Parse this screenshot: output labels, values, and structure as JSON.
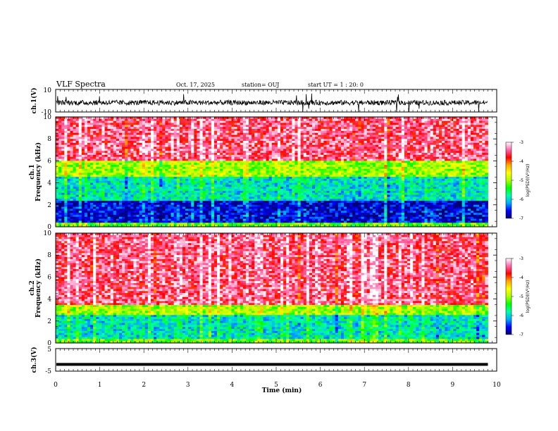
{
  "header": {
    "title": "VLF Spectra",
    "date": "Oct. 17, 2025",
    "station": "station= OUJ",
    "start": "start  UT =   1 : 20: 0"
  },
  "chart_data": [
    {
      "type": "line",
      "name": "ch1-waveform",
      "ylabel": "ch.1(V)",
      "ylim": [
        -10,
        10
      ],
      "y_ticks": [
        "10",
        "-10"
      ],
      "baseline": -2,
      "noise_band": [
        -4,
        0.5
      ],
      "spikes_max": 9,
      "xlim": [
        0,
        9.8
      ]
    },
    {
      "type": "heatmap",
      "name": "ch1-spectrogram",
      "ylabel_top": "ch.1",
      "ylabel": "Frequency  (kHz)",
      "ylim": [
        0,
        10
      ],
      "y_ticks": [
        "0",
        "2",
        "4",
        "6",
        "8",
        "10"
      ],
      "xlim": [
        0,
        9.8
      ],
      "approx_profile": [
        {
          "freq": [
            0,
            0.4
          ],
          "log_psd": -5.2
        },
        {
          "freq": [
            0.4,
            2.4
          ],
          "log_psd": -6.7
        },
        {
          "freq": [
            2.4,
            4.5
          ],
          "log_psd": -5.9
        },
        {
          "freq": [
            4.5,
            6.0
          ],
          "log_psd": -5.0
        },
        {
          "freq": [
            6.0,
            10.0
          ],
          "log_psd": -3.5
        }
      ]
    },
    {
      "type": "heatmap",
      "name": "ch2-spectrogram",
      "ylabel_top": "ch.2",
      "ylabel": "Frequency  (kHz)",
      "ylim": [
        0,
        10
      ],
      "y_ticks": [
        "0",
        "2",
        "4",
        "6",
        "8",
        "10"
      ],
      "xlim": [
        0,
        9.8
      ],
      "approx_profile": [
        {
          "freq": [
            0,
            0.4
          ],
          "log_psd": -5.2
        },
        {
          "freq": [
            0.4,
            2.6
          ],
          "log_psd": -5.9
        },
        {
          "freq": [
            2.6,
            3.4
          ],
          "log_psd": -5.0
        },
        {
          "freq": [
            3.4,
            10.0
          ],
          "log_psd": -3.5
        }
      ]
    },
    {
      "type": "line",
      "name": "ch3-waveform",
      "ylabel": "ch.3(V)",
      "ylim": [
        -5,
        5
      ],
      "y_ticks": [
        "5",
        "-5"
      ],
      "baseline": -2.0,
      "xlim": [
        0,
        9.8
      ]
    }
  ],
  "colorbar": {
    "label": "log(PSD)(V²/Hz)",
    "range": [
      -7,
      -3
    ],
    "ticks": [
      "-3",
      "-4",
      "-5",
      "-6",
      "-7"
    ],
    "stops": [
      "#000070",
      "#0000ff",
      "#00aaff",
      "#00ffaa",
      "#00ff00",
      "#aaff00",
      "#ffff00",
      "#ffaa00",
      "#ff0000",
      "#ff66aa",
      "#ffffff"
    ]
  },
  "xaxis": {
    "label": "Time  (min)",
    "range": [
      0,
      10
    ],
    "ticks": [
      "0",
      "1",
      "2",
      "3",
      "4",
      "5",
      "6",
      "7",
      "8",
      "9",
      "10"
    ]
  }
}
